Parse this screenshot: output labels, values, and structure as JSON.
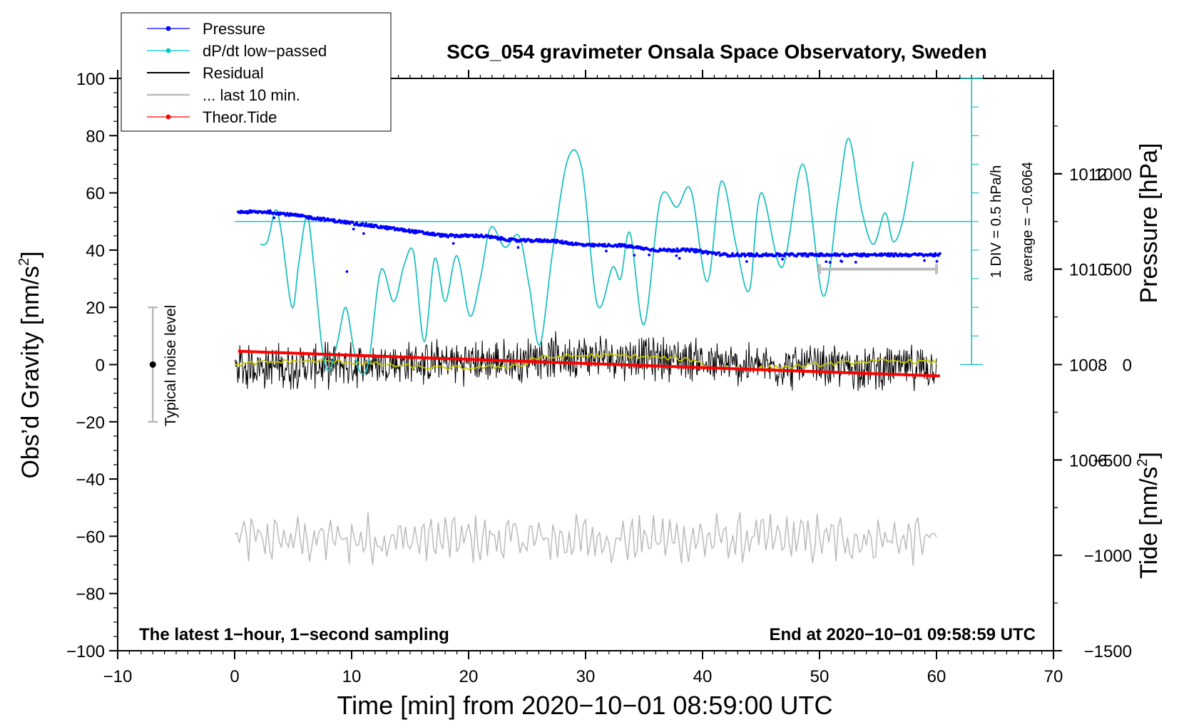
{
  "chart_data": {
    "type": "line",
    "title": "SCG_054 gravimeter Onsala Space Observatory, Sweden",
    "xlabel": "Time [min] from 2020−10−01 08:59:00 UTC",
    "ylabel_left": "Obs’d Gravity [nm/s",
    "ylabel_left_sup": "2",
    "ylabel_left_close": "]",
    "ylabel_pressure": "Pressure [hPa]",
    "ylabel_tide": "Tide [nm/s",
    "ylabel_tide_sup": "2",
    "ylabel_tide_close": "]",
    "xlim": [
      -10,
      70
    ],
    "ylim": [
      -100,
      100
    ],
    "pressure_lim": [
      1002,
      1014
    ],
    "tide_lim": [
      -1500,
      1500
    ],
    "x_ticks": [
      -10,
      0,
      10,
      20,
      30,
      40,
      50,
      60,
      70
    ],
    "x_tick_labels": [
      "−10",
      "0",
      "10",
      "20",
      "30",
      "40",
      "50",
      "60",
      "70"
    ],
    "y_ticks": [
      -100,
      -80,
      -60,
      -40,
      -20,
      0,
      20,
      40,
      60,
      80,
      100
    ],
    "y_tick_labels": [
      "−100",
      "−80",
      "−60",
      "−40",
      "−20",
      "0",
      "20",
      "40",
      "60",
      "80",
      "100"
    ],
    "pressure_ticks": [
      1006,
      1008,
      1010,
      1012
    ],
    "pressure_tick_labels": [
      "1006",
      "1008",
      "1010",
      "1012"
    ],
    "tide_ticks": [
      -1500,
      -1000,
      -500,
      0,
      500,
      1000
    ],
    "tide_tick_labels": [
      "−1500",
      "−1000",
      "−500",
      "0",
      "500",
      "1000"
    ],
    "legend": {
      "position": "top-left",
      "entries": [
        {
          "label": "Pressure",
          "color": "#0000ff",
          "marker": true
        },
        {
          "label": "dP/dt low−passed",
          "color": "#00c8c8",
          "marker": true
        },
        {
          "label": "Residual",
          "color": "#000000",
          "marker": false
        },
        {
          "label": "... last 10 min.",
          "color": "#bbbbbb",
          "marker": false
        },
        {
          "label": "Theor.Tide",
          "color": "#ff0000",
          "marker": true
        }
      ]
    },
    "annotations": {
      "bottom_left": "The latest 1−hour, 1−second sampling",
      "bottom_right": "End at 2020−10−01 09:58:59 UTC",
      "noise": "Typical noise level",
      "div_label": "1 DIV = 0.5 hPa/h",
      "average_label": "average = −0.6064"
    },
    "noise_bar": {
      "x": -7,
      "y_min": -20,
      "y_max": 20
    },
    "last10_bar": {
      "x_start": 50,
      "x_end": 60,
      "tide_value": 500
    },
    "dpdt_scale": {
      "x": 63,
      "y_bottom": 0,
      "y_top": 100,
      "div_step": 10,
      "average_line_y": 50
    },
    "series": [
      {
        "name": "Pressure",
        "axis": "pressure",
        "color": "#0000ff",
        "x": [
          0.3,
          3,
          6,
          9,
          12,
          15,
          18,
          21,
          24,
          27,
          30,
          33,
          36,
          39,
          42,
          45,
          48,
          51,
          54,
          57,
          60.3
        ],
        "y": [
          1011.2,
          1011.2,
          1011.1,
          1011.0,
          1010.9,
          1010.8,
          1010.7,
          1010.7,
          1010.6,
          1010.6,
          1010.5,
          1010.5,
          1010.4,
          1010.4,
          1010.3,
          1010.3,
          1010.3,
          1010.3,
          1010.3,
          1010.3,
          1010.3
        ]
      },
      {
        "name": "dP/dt low−passed",
        "axis": "gravity",
        "color": "#20c0c0",
        "x": [
          2.2,
          2.8,
          3.5,
          4.0,
          4.9,
          5.5,
          6.2,
          6.8,
          7.5,
          8.1,
          8.8,
          9.5,
          10.2,
          10.8,
          11.5,
          12.5,
          13.6,
          14.5,
          15.3,
          16.2,
          17.1,
          18.0,
          19.0,
          20.1,
          21.0,
          21.9,
          23.1,
          24.3,
          25.2,
          26.1,
          27.2,
          28.5,
          29.7,
          31.0,
          32.3,
          33.0,
          33.8,
          35.0,
          36.4,
          37.8,
          39.0,
          40.4,
          41.6,
          42.9,
          44.0,
          45.0,
          46.8,
          48.6,
          50.3,
          51.6,
          52.5,
          53.6,
          54.6,
          55.6,
          56.3,
          57.1,
          58.0
        ],
        "y": [
          42,
          43,
          54,
          46,
          20,
          36,
          52,
          33,
          5,
          -2,
          8,
          20,
          5,
          -3,
          2,
          33,
          22,
          35,
          39,
          8,
          37,
          22,
          38,
          17,
          30,
          48,
          41,
          45,
          27,
          7,
          40,
          72,
          68,
          21,
          34,
          30,
          46,
          14,
          58,
          55,
          61,
          29,
          64,
          41,
          26,
          60,
          34,
          70,
          24,
          58,
          79,
          54,
          42,
          53,
          43,
          50,
          71
        ]
      },
      {
        "name": "Residual",
        "axis": "gravity",
        "color": "#000000",
        "x_range": [
          0,
          60
        ],
        "amplitude": 9,
        "mean": 0
      },
      {
        "name": "... last 10 min.",
        "axis": "gravity",
        "color": "#bbbbbb",
        "x_range": [
          0,
          60
        ],
        "mean": -61,
        "amplitude": 10
      },
      {
        "name": "Theor.Tide",
        "axis": "tide",
        "color": "#ff0000",
        "x": [
          0.3,
          60.3
        ],
        "y": [
          70,
          -60
        ]
      }
    ]
  }
}
